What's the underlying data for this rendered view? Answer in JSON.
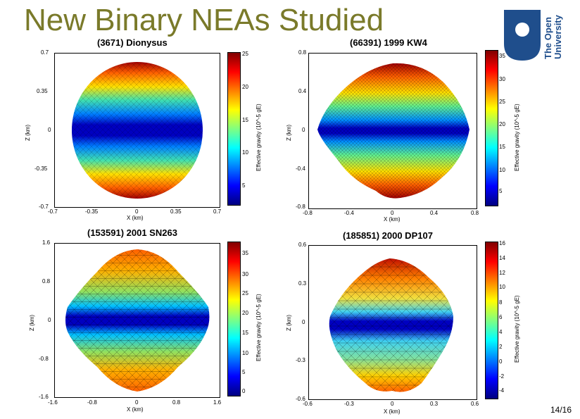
{
  "slide": {
    "title": "New Binary NEAs Studied",
    "page": "14/16"
  },
  "logo": {
    "lines": [
      "The Open",
      "University"
    ],
    "color": "#1f4e8c"
  },
  "panels": [
    {
      "title": "(3671) Dionysus",
      "xlabel": "X (km)",
      "ylabel": "Z (km)",
      "xticks": [
        "-0.7",
        "-0.35",
        "0",
        "0.35",
        "0.7"
      ],
      "yticks": [
        "0.7",
        "0.35",
        "0",
        "-0.35",
        "-0.7"
      ],
      "cbar_label": "Effective gravity (10^-5 gE)",
      "cbar_ticks": [
        "25",
        "20",
        "15",
        "10",
        "5"
      ]
    },
    {
      "title": "(66391) 1999 KW4",
      "xlabel": "X (km)",
      "ylabel": "Z (km)",
      "xticks": [
        "-0.8",
        "-0.4",
        "0",
        "0.4",
        "0.8"
      ],
      "yticks": [
        "0.8",
        "0.4",
        "0",
        "-0.4",
        "-0.8"
      ],
      "cbar_label": "Effective gravity (10^-5 gE)",
      "cbar_ticks": [
        "35",
        "30",
        "25",
        "20",
        "15",
        "10",
        "5"
      ]
    },
    {
      "title": "(153591) 2001 SN263",
      "xlabel": "X (km)",
      "ylabel": "Z (km)",
      "xticks": [
        "-1.6",
        "-0.8",
        "0",
        "0.8",
        "1.6"
      ],
      "yticks": [
        "1.6",
        "0.8",
        "0",
        "-0.8",
        "-1.6"
      ],
      "cbar_label": "Effective gravity (10^-5 gE)",
      "cbar_ticks": [
        "35",
        "30",
        "25",
        "20",
        "15",
        "10",
        "5",
        "0"
      ]
    },
    {
      "title": "(185851) 2000 DP107",
      "xlabel": "X (km)",
      "ylabel": "Z (km)",
      "xticks": [
        "-0.6",
        "-0.3",
        "0",
        "0.3",
        "0.6"
      ],
      "yticks": [
        "0.6",
        "0.3",
        "0",
        "-0.3",
        "-0.6"
      ],
      "cbar_label": "Effective gravity (10^-5 gE)",
      "cbar_ticks": [
        "16",
        "14",
        "12",
        "10",
        "8",
        "6",
        "4",
        "2",
        "0",
        "-2",
        "-4"
      ]
    }
  ]
}
